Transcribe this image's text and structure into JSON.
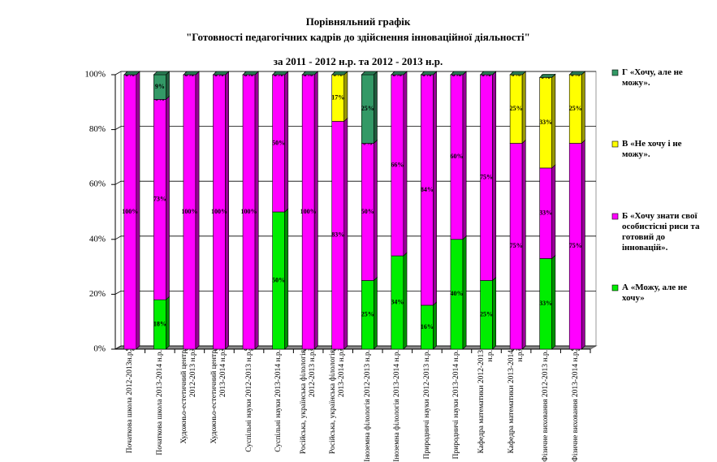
{
  "chart_data": {
    "type": "stacked_bar_3d",
    "title": [
      "Порівняльний графік",
      "\"Готовності педагогічних кадрів до здійснення інноваційної діяльності\""
    ],
    "subtitle": "за 2011 - 2012 н.р. та 2012 - 2013  н.р.",
    "categories": [
      "Початкова школа 2012-2013н.р.",
      "Початкова школа 2013-2014 н.р.",
      "Художньо-естетичний центр 2012-2013 н.р.",
      "Художньо-естетичний центр 2013-2014 н.р.",
      "Суспільні науки 2012-2013 н.р.",
      "Суспільні науки 2013-2014 н.р.",
      "Російська, українська філологія 2012-2013 н.р.",
      "Російська, українська філологія 2013-2014 н.р.",
      "Іноземна філологія 2012-2013 н.р.",
      "Іноземна філологія 2013-2014 н.р.",
      "Природничі науки 2012-2013 н.р.",
      "Природничі науки 2013-2014 н.р.",
      "Кафедра математики 2012-2013 н.р.",
      "Кафедра математики 2013-2014 н.р.",
      "Фізичне виховання 2012-2013 н.р.",
      "Фізичне виховання 2013-2014 н.р."
    ],
    "series": [
      {
        "name": "А «Можу, але не хочу»",
        "color": "#00ee00",
        "values": [
          0,
          18,
          0,
          0,
          0,
          50,
          0,
          0,
          25,
          34,
          16,
          40,
          25,
          0,
          33,
          0
        ],
        "value_labels": [
          "0%",
          "18%",
          "0%",
          "0%",
          "0%",
          "50%",
          "0%",
          "0%",
          "25%",
          "34%",
          "16%",
          "40%",
          "25%",
          "0%",
          "33%",
          "0%"
        ]
      },
      {
        "name": "Б «Хочу знати свої особистісні риси та готовий до інновацій».",
        "color": "#ff00ff",
        "values": [
          100,
          73,
          100,
          100,
          100,
          50,
          100,
          83,
          50,
          66,
          84,
          60,
          75,
          75,
          33,
          75
        ],
        "value_labels": [
          "100%",
          "73%",
          "100%",
          "100%",
          "100%",
          "50%",
          "100%",
          "83%",
          "50%",
          "66%",
          "84%",
          "60%",
          "75%",
          "75%",
          "33%",
          "75%"
        ]
      },
      {
        "name": "В «Не хочу і не можу».",
        "color": "#ffff00",
        "values": [
          0,
          0,
          0,
          0,
          0,
          0,
          0,
          17,
          0,
          0,
          0,
          0,
          0,
          25,
          33,
          25
        ],
        "value_labels": [
          "0%",
          "0%",
          "0%",
          "0%",
          "0%",
          "0%",
          "0%",
          "17%",
          "0%",
          "0%",
          "0%",
          "0%",
          "0%",
          "25%",
          "33%",
          "25%"
        ]
      },
      {
        "name": "Г «Хочу, але не можу».",
        "color": "#339966",
        "values": [
          0,
          9,
          0,
          0,
          0,
          0,
          0,
          0,
          25,
          0,
          0,
          0,
          0,
          0,
          0,
          0
        ],
        "value_labels": [
          "0%",
          "9%",
          "0%",
          "0%",
          "0%",
          "0%",
          "0%",
          "0%",
          "25%",
          "0%",
          "0%",
          "0%",
          "0%",
          "0%",
          "0%",
          "0%"
        ]
      }
    ],
    "ylim": [
      0,
      100
    ],
    "yticks": [
      {
        "value": 0,
        "label": "0%"
      },
      {
        "value": 20,
        "label": "20%"
      },
      {
        "value": 40,
        "label": "40%"
      },
      {
        "value": 60,
        "label": "60%"
      },
      {
        "value": 80,
        "label": "80%"
      },
      {
        "value": 100,
        "label": "100%"
      }
    ],
    "grid": true,
    "legend": "right"
  }
}
